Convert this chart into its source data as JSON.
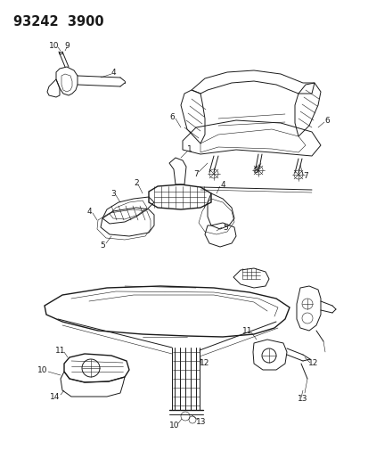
{
  "title": "93242  3900",
  "bg": "#ffffff",
  "lc": "#1a1a1a",
  "fig_w": 4.14,
  "fig_h": 5.33,
  "dpi": 100,
  "fs_title": 10.5,
  "fs_label": 6.0
}
